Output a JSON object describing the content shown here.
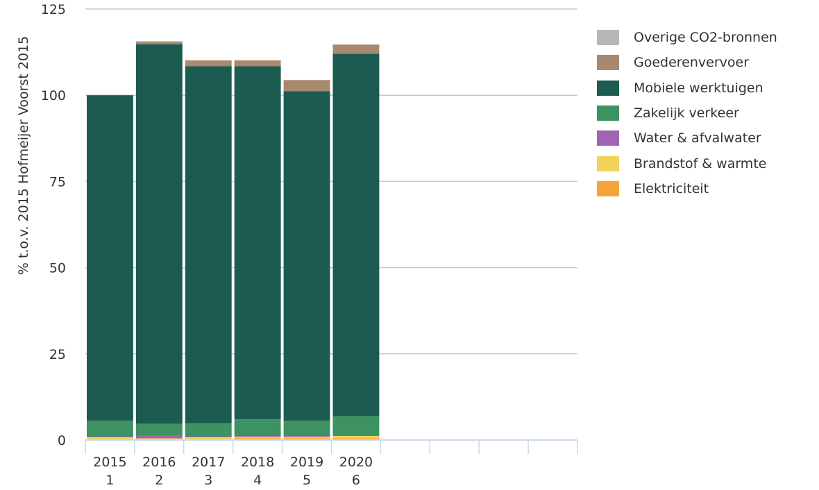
{
  "chart_data": {
    "type": "bar",
    "stacked": true,
    "ylabel": "% t.o.v. 2015 Hofmeijer Voorst 2015",
    "ylim": [
      0,
      125
    ],
    "yticks": [
      "0",
      "25",
      "50",
      "75",
      "100",
      "125"
    ],
    "grid": true,
    "legend_position": "right",
    "categories": [
      "2015",
      "2016",
      "2017",
      "2018",
      "2019",
      "2020",
      "",
      "",
      "",
      ""
    ],
    "category_numbers": [
      "1",
      "2",
      "3",
      "4",
      "5",
      "6",
      "",
      "",
      "",
      ""
    ],
    "series": [
      {
        "name": "Elektriciteit",
        "color": "#f5a33b",
        "values": [
          0.0,
          0.0,
          0.0,
          0.5,
          0.5,
          0.5,
          null,
          null,
          null,
          null
        ]
      },
      {
        "name": "Brandstof & warmte",
        "color": "#f2d35a",
        "values": [
          0.8,
          0.5,
          0.8,
          0.4,
          0.4,
          0.7,
          null,
          null,
          null,
          null
        ]
      },
      {
        "name": "Water & afvalwater",
        "color": "#a264b2",
        "values": [
          0.2,
          0.8,
          0.2,
          0.3,
          0.3,
          0.0,
          null,
          null,
          null,
          null
        ]
      },
      {
        "name": "Zakelijk verkeer",
        "color": "#3c9261",
        "values": [
          4.6,
          3.4,
          3.8,
          4.8,
          4.4,
          5.7,
          null,
          null,
          null,
          null
        ]
      },
      {
        "name": "Mobiele werktuigen",
        "color": "#1c5b50",
        "values": [
          94.4,
          110.1,
          103.6,
          102.4,
          95.6,
          105.1,
          null,
          null,
          null,
          null
        ]
      },
      {
        "name": "Goederenvervoer",
        "color": "#a8886f",
        "values": [
          0.0,
          0.8,
          1.7,
          1.7,
          3.2,
          2.7,
          null,
          null,
          null,
          null
        ]
      },
      {
        "name": "Overige CO2-bronnen",
        "color": "#b7b7b7",
        "values": [
          0.0,
          0.0,
          0.0,
          0.0,
          0.0,
          0.0,
          null,
          null,
          null,
          null
        ]
      }
    ]
  },
  "legend_order": [
    6,
    5,
    4,
    3,
    2,
    1,
    0
  ],
  "colors": {
    "grid": "#c9c9c9",
    "axis": "#cad9eb",
    "text": "#333333"
  }
}
